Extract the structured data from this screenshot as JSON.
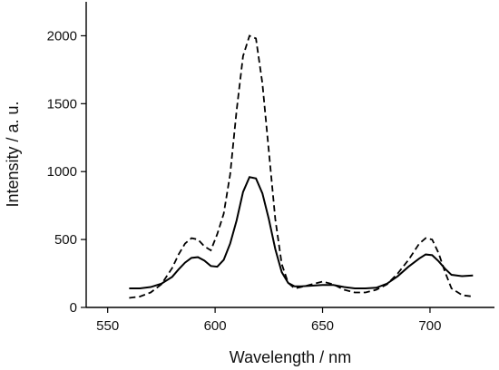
{
  "chart_data": {
    "type": "line",
    "xlabel": "Wavelength / nm",
    "ylabel": "Intensity / a. u.",
    "xlim": [
      540,
      730
    ],
    "ylim": [
      0,
      2250
    ],
    "xticks": [
      550,
      600,
      650,
      700
    ],
    "yticks": [
      0,
      500,
      1000,
      1500,
      2000
    ],
    "grid": false,
    "series": [
      {
        "style": "solid",
        "x": [
          560,
          565,
          570,
          575,
          580,
          583,
          586,
          589,
          592,
          595,
          598,
          601,
          604,
          607,
          610,
          613,
          616,
          619,
          622,
          625,
          628,
          631,
          634,
          637,
          640,
          645,
          650,
          655,
          660,
          665,
          670,
          675,
          680,
          685,
          690,
          695,
          698,
          701,
          704,
          707,
          710,
          715,
          720
        ],
        "y": [
          140,
          140,
          150,
          175,
          225,
          280,
          330,
          365,
          370,
          345,
          305,
          300,
          350,
          470,
          640,
          850,
          960,
          950,
          840,
          650,
          430,
          260,
          180,
          155,
          155,
          160,
          165,
          165,
          150,
          140,
          140,
          145,
          175,
          230,
          300,
          360,
          390,
          385,
          340,
          285,
          240,
          230,
          235
        ]
      },
      {
        "style": "dashed",
        "x": [
          560,
          565,
          570,
          575,
          580,
          583,
          586,
          589,
          592,
          595,
          598,
          601,
          604,
          607,
          610,
          613,
          616,
          619,
          622,
          625,
          628,
          631,
          634,
          637,
          640,
          645,
          650,
          655,
          660,
          665,
          670,
          675,
          680,
          685,
          690,
          695,
          698,
          701,
          704,
          707,
          710,
          715,
          720
        ],
        "y": [
          70,
          80,
          110,
          170,
          290,
          390,
          470,
          510,
          500,
          450,
          420,
          540,
          690,
          980,
          1450,
          1850,
          2000,
          1980,
          1650,
          1150,
          650,
          320,
          180,
          140,
          150,
          170,
          190,
          170,
          130,
          110,
          110,
          130,
          170,
          250,
          350,
          470,
          510,
          500,
          400,
          260,
          140,
          90,
          80
        ]
      }
    ]
  }
}
